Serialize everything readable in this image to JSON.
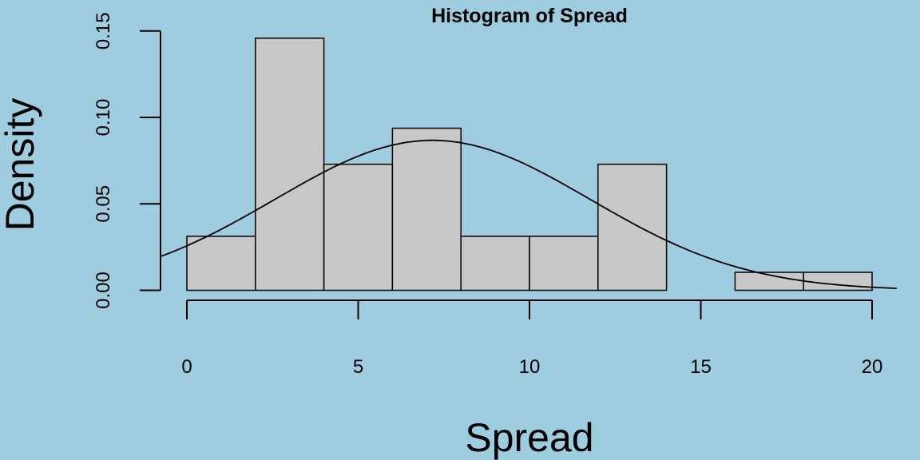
{
  "chart_data": {
    "type": "bar",
    "subtype": "histogram",
    "title": "Histogram of Spread",
    "xlabel": "Spread",
    "ylabel": "Density",
    "bins": [
      {
        "start": 0,
        "end": 2,
        "density": 0.03125
      },
      {
        "start": 2,
        "end": 4,
        "density": 0.1458
      },
      {
        "start": 4,
        "end": 6,
        "density": 0.0729
      },
      {
        "start": 6,
        "end": 8,
        "density": 0.09375
      },
      {
        "start": 8,
        "end": 10,
        "density": 0.03125
      },
      {
        "start": 10,
        "end": 12,
        "density": 0.03125
      },
      {
        "start": 12,
        "end": 14,
        "density": 0.0729
      },
      {
        "start": 14,
        "end": 16,
        "density": 0
      },
      {
        "start": 16,
        "end": 18,
        "density": 0.0104
      },
      {
        "start": 18,
        "end": 20,
        "density": 0.0104
      }
    ],
    "density_curve": {
      "type": "normal",
      "mean": 7.17,
      "sd": 4.6
    },
    "x_ticks": [
      0,
      5,
      10,
      15,
      20
    ],
    "x_tick_labels": [
      "0",
      "5",
      "10",
      "15",
      "20"
    ],
    "y_ticks": [
      0,
      0.05,
      0.1,
      0.15
    ],
    "y_tick_labels": [
      "0.00",
      "0.05",
      "0.10",
      "0.15"
    ],
    "xlim": [
      -0.78,
      20.8
    ],
    "ylim": [
      0,
      0.15
    ],
    "grid": false,
    "colors": {
      "background": "#9ECDE0",
      "bar_fill": "#C8C8C8",
      "stroke": "#000000"
    }
  }
}
